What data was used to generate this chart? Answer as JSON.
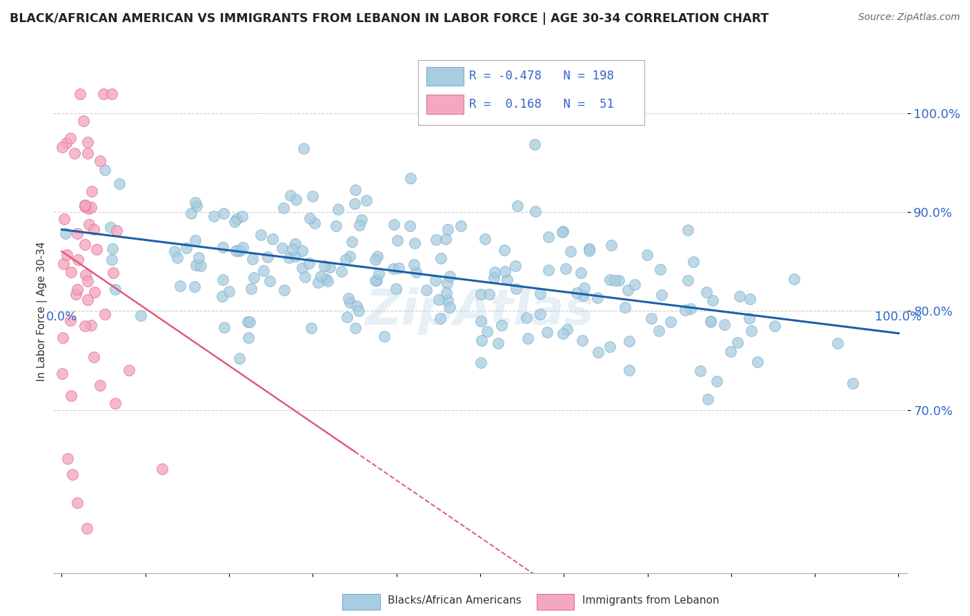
{
  "title": "BLACK/AFRICAN AMERICAN VS IMMIGRANTS FROM LEBANON IN LABOR FORCE | AGE 30-34 CORRELATION CHART",
  "source": "Source: ZipAtlas.com",
  "ylabel": "In Labor Force | Age 30-34",
  "r_blue": -0.478,
  "n_blue": 198,
  "r_pink": 0.168,
  "n_pink": 51,
  "blue_scatter_color": "#a8cce0",
  "blue_edge_color": "#7ab0cc",
  "blue_line_color": "#1a5fa8",
  "pink_scatter_color": "#f4a8c0",
  "pink_edge_color": "#e07090",
  "pink_line_color": "#e05878",
  "legend_label_blue": "Blacks/African Americans",
  "legend_label_pink": "Immigrants from Lebanon",
  "ytick_labels": [
    "70.0%",
    "80.0%",
    "90.0%",
    "100.0%"
  ],
  "yticks": [
    0.7,
    0.8,
    0.9,
    1.0
  ],
  "xtick_labels": [
    "0.0%",
    "100.0%"
  ],
  "watermark": "ZipAtlas",
  "title_color": "#222222",
  "source_color": "#666666",
  "tick_color": "#3366cc",
  "grid_color": "#cccccc"
}
